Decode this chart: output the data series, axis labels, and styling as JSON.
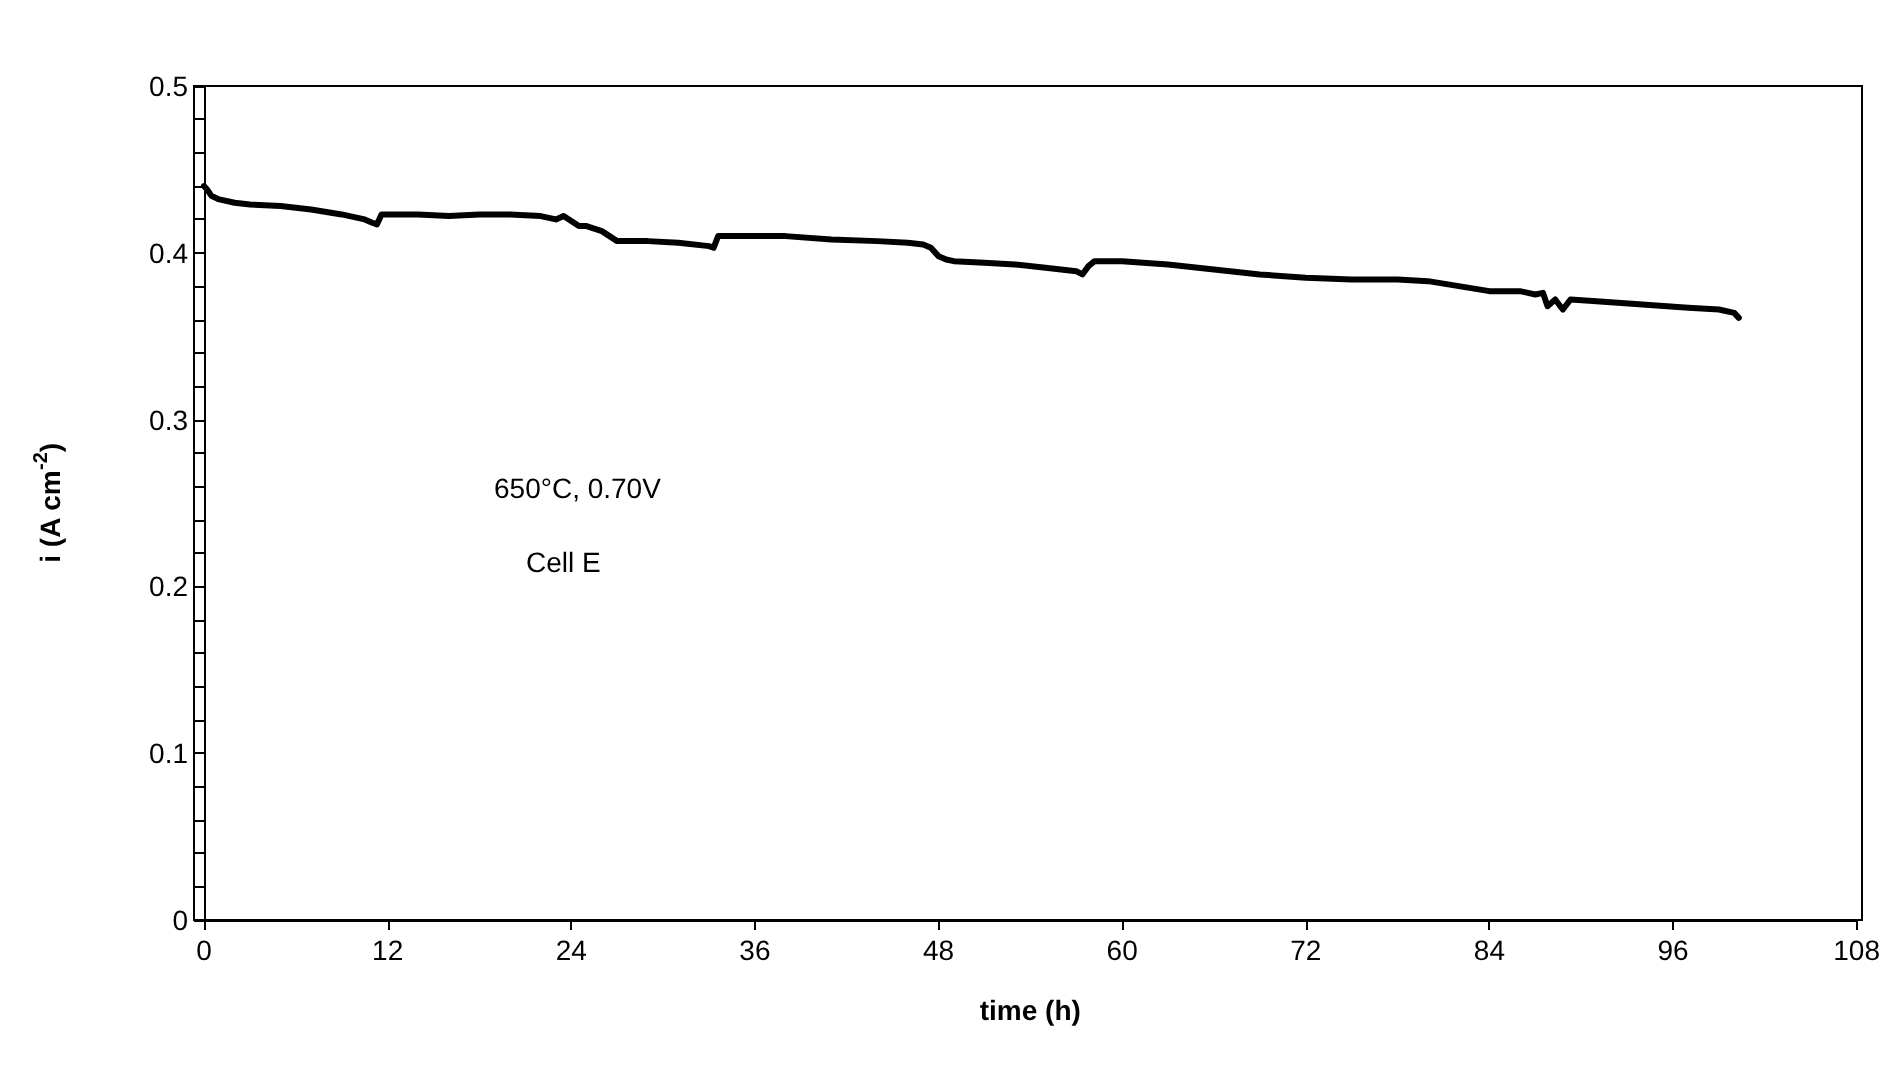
{
  "chart_data": {
    "type": "line",
    "xlabel": "time (h)",
    "ylabel": "i (A cm$^{-2}$)",
    "annotations": [
      "650°C, 0.70V",
      "Cell E"
    ],
    "xlim": [
      0,
      108
    ],
    "xticks": [
      0,
      12,
      24,
      36,
      48,
      60,
      72,
      84,
      96,
      108
    ],
    "ylim": [
      0,
      0.5
    ],
    "yticks": [
      0,
      {
        "value": 0.02,
        "label": null
      },
      {
        "value": 0.04,
        "label": null
      },
      {
        "value": 0.06,
        "label": null
      },
      {
        "value": 0.08,
        "label": null
      },
      0.1,
      {
        "value": 0.12,
        "label": null
      },
      {
        "value": 0.14,
        "label": null
      },
      {
        "value": 0.16,
        "label": null
      },
      {
        "value": 0.18,
        "label": null
      },
      0.2,
      {
        "value": 0.22,
        "label": null
      },
      {
        "value": 0.24,
        "label": null
      },
      {
        "value": 0.26,
        "label": null
      },
      {
        "value": 0.28,
        "label": null
      },
      0.3,
      {
        "value": 0.32,
        "label": null
      },
      {
        "value": 0.34,
        "label": null
      },
      {
        "value": 0.36,
        "label": null
      },
      {
        "value": 0.38,
        "label": null
      },
      0.4,
      {
        "value": 0.42,
        "label": null
      },
      {
        "value": 0.44,
        "label": null
      },
      {
        "value": 0.46,
        "label": null
      },
      {
        "value": 0.48,
        "label": null
      },
      0.5
    ],
    "grid": false,
    "marker": "none",
    "line_style": "solid",
    "series": [
      {
        "color": "#000000",
        "x": [
          0,
          0.2,
          0.5,
          1,
          2,
          3,
          5,
          7,
          9,
          10.5,
          11,
          11.3,
          11.6,
          12,
          14,
          16,
          18,
          20,
          22,
          23,
          23.5,
          24,
          24.5,
          25,
          26,
          27,
          29,
          31,
          33,
          33.3,
          33.6,
          35,
          38,
          41,
          44,
          46,
          47,
          47.5,
          48,
          48.5,
          49,
          51,
          53,
          55,
          57,
          57.4,
          57.8,
          58.2,
          60,
          63,
          66,
          69,
          72,
          75,
          78,
          80,
          82,
          84,
          86,
          87,
          87.5,
          87.8,
          88.3,
          88.8,
          89.3,
          91,
          94,
          97,
          99,
          100,
          100.3
        ],
        "values": [
          0.44,
          0.438,
          0.434,
          0.432,
          0.43,
          0.429,
          0.428,
          0.426,
          0.423,
          0.42,
          0.418,
          0.417,
          0.423,
          0.423,
          0.423,
          0.422,
          0.423,
          0.423,
          0.422,
          0.42,
          0.422,
          0.419,
          0.416,
          0.416,
          0.413,
          0.407,
          0.407,
          0.406,
          0.404,
          0.403,
          0.41,
          0.41,
          0.41,
          0.408,
          0.407,
          0.406,
          0.405,
          0.403,
          0.398,
          0.396,
          0.395,
          0.394,
          0.393,
          0.391,
          0.389,
          0.387,
          0.392,
          0.395,
          0.395,
          0.393,
          0.39,
          0.387,
          0.385,
          0.384,
          0.384,
          0.383,
          0.38,
          0.377,
          0.377,
          0.375,
          0.376,
          0.368,
          0.372,
          0.366,
          0.372,
          0.371,
          0.369,
          0.367,
          0.366,
          0.364,
          0.361
        ]
      }
    ]
  }
}
